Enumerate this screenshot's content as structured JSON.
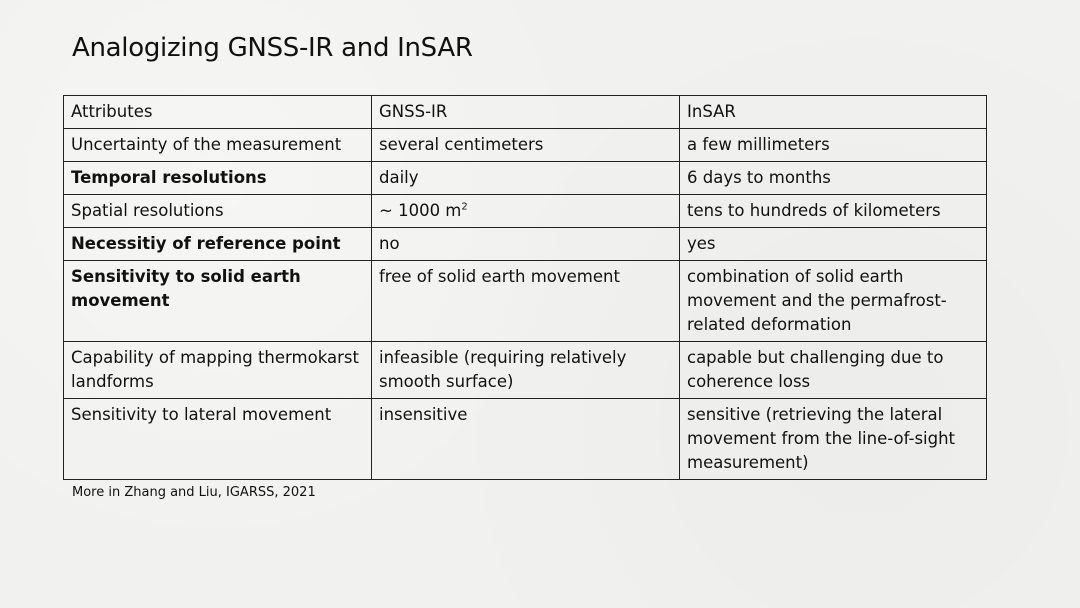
{
  "slide": {
    "title": "Analogizing GNSS-IR and InSAR",
    "footnote": "More in Zhang and Liu, IGARSS, 2021"
  },
  "table": {
    "header": {
      "attribute": "Attributes",
      "gnss": "GNSS-IR",
      "insar": "InSAR"
    },
    "rows": [
      {
        "attribute": "Uncertainty of the measurement",
        "gnss": "several centimeters",
        "insar": "a few millimeters",
        "bold": false
      },
      {
        "attribute": "Temporal resolutions",
        "gnss": "daily",
        "insar": "6 days to months",
        "bold": true
      },
      {
        "attribute": "Spatial resolutions",
        "gnss": "~ 1000 m",
        "gnss_sup": "2",
        "insar": "tens to hundreds of kilometers",
        "bold": false
      },
      {
        "attribute": "Necessitiy of reference point",
        "gnss": "no",
        "insar": "yes",
        "bold": true
      },
      {
        "attribute": "Sensitivity to solid earth movement",
        "gnss": "free of solid earth movement",
        "insar": "combination of solid earth movement and the permafrost-related deformation",
        "bold": true
      },
      {
        "attribute": "Capability of mapping thermokarst landforms",
        "gnss": "infeasible (requiring relatively smooth surface)",
        "insar": "capable but challenging due to coherence loss",
        "bold": false
      },
      {
        "attribute": "Sensitivity to lateral movement",
        "gnss": "insensitive",
        "insar": "sensitive (retrieving the lateral movement from the line-of-sight measurement)",
        "bold": false
      }
    ]
  }
}
